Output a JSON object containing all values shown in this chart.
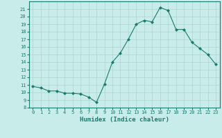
{
  "x": [
    0,
    1,
    2,
    3,
    4,
    5,
    6,
    7,
    8,
    9,
    10,
    11,
    12,
    13,
    14,
    15,
    16,
    17,
    18,
    19,
    20,
    21,
    22,
    23
  ],
  "y": [
    10.8,
    10.6,
    10.2,
    10.2,
    9.9,
    9.9,
    9.8,
    9.4,
    8.7,
    11.1,
    14.0,
    15.2,
    17.0,
    19.0,
    19.5,
    19.3,
    21.2,
    20.8,
    18.3,
    18.3,
    16.6,
    15.8,
    15.0,
    13.7
  ],
  "line_color": "#1a7a6e",
  "marker": "D",
  "marker_size": 2.0,
  "bg_color": "#c8ecea",
  "grid_color": "#afd4d0",
  "tick_color": "#1a7a6e",
  "xlabel": "Humidex (Indice chaleur)",
  "xlabel_fontsize": 6.5,
  "ylim": [
    8,
    22
  ],
  "xlim": [
    -0.5,
    23.5
  ],
  "yticks": [
    8,
    9,
    10,
    11,
    12,
    13,
    14,
    15,
    16,
    17,
    18,
    19,
    20,
    21
  ],
  "xticks": [
    0,
    1,
    2,
    3,
    4,
    5,
    6,
    7,
    8,
    9,
    10,
    11,
    12,
    13,
    14,
    15,
    16,
    17,
    18,
    19,
    20,
    21,
    22,
    23
  ],
  "tick_fontsize": 5.0,
  "linewidth": 0.8
}
